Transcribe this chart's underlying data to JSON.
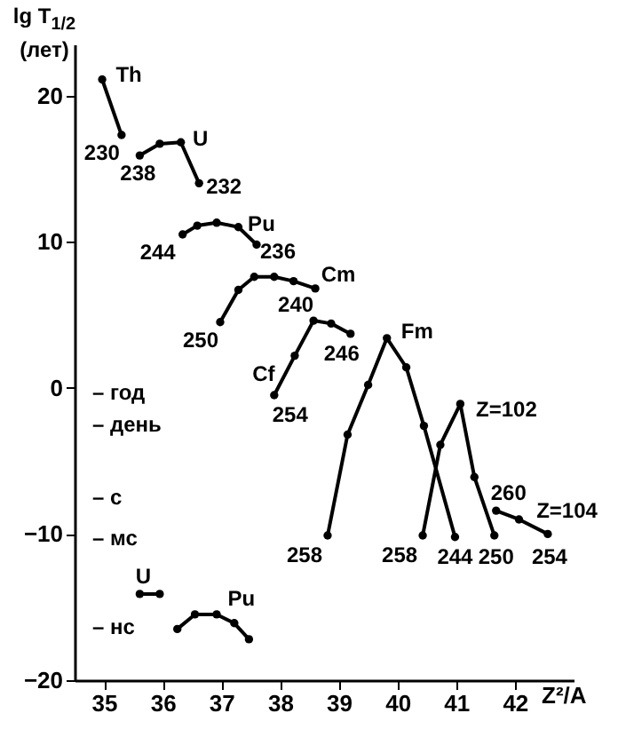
{
  "chart_data": {
    "type": "line",
    "xlabel": "Z²/A",
    "ylabel": "lg T$_{1/2}$ (лет)",
    "xlim": [
      34.5,
      43
    ],
    "ylim": [
      -20,
      23.5
    ],
    "xticks": [
      35,
      36,
      37,
      38,
      39,
      40,
      41,
      42
    ],
    "yticks": [
      -20,
      -10,
      0,
      10,
      20
    ],
    "marker": "circle",
    "line_style": "solid",
    "grid": false,
    "legend": false,
    "series": [
      {
        "color": "#000000",
        "x": [
          34.97,
          35.3
        ],
        "values": [
          21.1,
          17.3
        ]
      },
      {
        "color": "#000000",
        "x": [
          35.61,
          35.95,
          36.31,
          36.62
        ],
        "values": [
          15.9,
          16.7,
          16.8,
          14.0
        ]
      },
      {
        "color": "#000000",
        "x": [
          36.34,
          36.59,
          36.92,
          37.29,
          37.6
        ],
        "values": [
          10.5,
          11.1,
          11.3,
          11.0,
          9.8
        ]
      },
      {
        "color": "#000000",
        "x": [
          36.98,
          37.29,
          37.56,
          37.9,
          38.23,
          38.6
        ],
        "values": [
          4.5,
          6.7,
          7.6,
          7.6,
          7.3,
          6.8
        ]
      },
      {
        "color": "#000000",
        "x": [
          37.9,
          38.25,
          38.57,
          38.87,
          39.2
        ],
        "values": [
          -0.5,
          2.2,
          4.6,
          4.4,
          3.7
        ]
      },
      {
        "color": "#000000",
        "x": [
          38.81,
          39.15,
          39.5,
          39.82,
          40.15,
          40.45,
          40.98
        ],
        "values": [
          -10.1,
          -3.2,
          0.2,
          3.4,
          1.4,
          -2.6,
          -10.2
        ]
      },
      {
        "color": "#000000",
        "x": [
          40.43,
          40.73,
          41.07,
          41.31,
          41.65
        ],
        "values": [
          -10.1,
          -3.9,
          -1.1,
          -6.1,
          -10.1
        ]
      },
      {
        "color": "#000000",
        "x": [
          41.68,
          42.07,
          42.56
        ],
        "values": [
          -8.4,
          -9.0,
          -10.0
        ]
      },
      {
        "color": "#000000",
        "x": [
          35.61,
          35.95
        ],
        "values": [
          -14.1,
          -14.1
        ]
      },
      {
        "color": "#000000",
        "x": [
          36.25,
          36.55,
          36.92,
          37.22,
          37.47
        ],
        "values": [
          -16.5,
          -15.5,
          -15.5,
          -16.1,
          -17.2
        ]
      }
    ],
    "annotations": [
      {
        "text": "Th",
        "x": 34.97,
        "y": 21.1
      },
      {
        "text": "230",
        "x": 35.3,
        "y": 17.3
      },
      {
        "text": "238",
        "x": 35.61,
        "y": 15.9
      },
      {
        "text": "U",
        "x": 36.31,
        "y": 16.8
      },
      {
        "text": "232",
        "x": 36.62,
        "y": 14.0
      },
      {
        "text": "244",
        "x": 36.34,
        "y": 10.5
      },
      {
        "text": "Pu",
        "x": 37.29,
        "y": 11.0
      },
      {
        "text": "236",
        "x": 37.6,
        "y": 9.8
      },
      {
        "text": "250",
        "x": 36.98,
        "y": 4.5
      },
      {
        "text": "240",
        "x": 38.6,
        "y": 6.8
      },
      {
        "text": "Cm",
        "x": 38.6,
        "y": 6.8
      },
      {
        "text": "246",
        "x": 39.2,
        "y": 3.7
      },
      {
        "text": "Cf",
        "x": 37.9,
        "y": -0.5
      },
      {
        "text": "254",
        "x": 37.9,
        "y": -0.5
      },
      {
        "text": "Fm",
        "x": 39.82,
        "y": 3.4
      },
      {
        "text": "258",
        "x": 38.81,
        "y": -10.1
      },
      {
        "text": "Z=102",
        "x": 41.07,
        "y": -1.1
      },
      {
        "text": "258",
        "x": 40.43,
        "y": -10.1
      },
      {
        "text": "244",
        "x": 40.98,
        "y": -10.2
      },
      {
        "text": "250",
        "x": 41.65,
        "y": -10.1
      },
      {
        "text": "260",
        "x": 41.68,
        "y": -8.4
      },
      {
        "text": "Z=104",
        "x": 42.07,
        "y": -9.0
      },
      {
        "text": "254",
        "x": 42.56,
        "y": -10.0
      },
      {
        "text": "U",
        "x": 35.61,
        "y": -14.1
      },
      {
        "text": "Pu",
        "x": 37.22,
        "y": -16.1
      },
      "– год",
      "– день",
      "– с",
      "– мс",
      "– нс"
    ]
  }
}
